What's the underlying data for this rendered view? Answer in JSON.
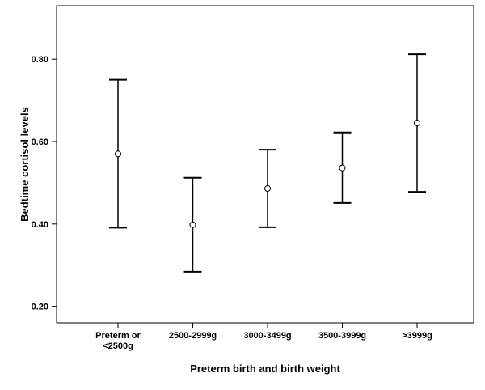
{
  "chart_data": {
    "type": "errorbar",
    "xlabel": "Preterm birth and birth weight",
    "ylabel": "Bedtime cortisol levels",
    "ylim": [
      0.16,
      0.93
    ],
    "yticks": [
      0.2,
      0.4,
      0.6,
      0.8
    ],
    "ytick_labels": [
      "0.20",
      "0.40",
      "0.60",
      "0.80"
    ],
    "grid": false,
    "categories": [
      [
        "Preterm or",
        "<2500g"
      ],
      [
        "2500-2999g"
      ],
      [
        "3000-3499g"
      ],
      [
        "3500-3999g"
      ],
      [
        ">3999g"
      ]
    ],
    "series": [
      {
        "mean": [
          0.57,
          0.398,
          0.486,
          0.536,
          0.645
        ],
        "lower": [
          0.391,
          0.284,
          0.392,
          0.451,
          0.478
        ],
        "upper": [
          0.75,
          0.512,
          0.58,
          0.622,
          0.812
        ]
      }
    ]
  }
}
